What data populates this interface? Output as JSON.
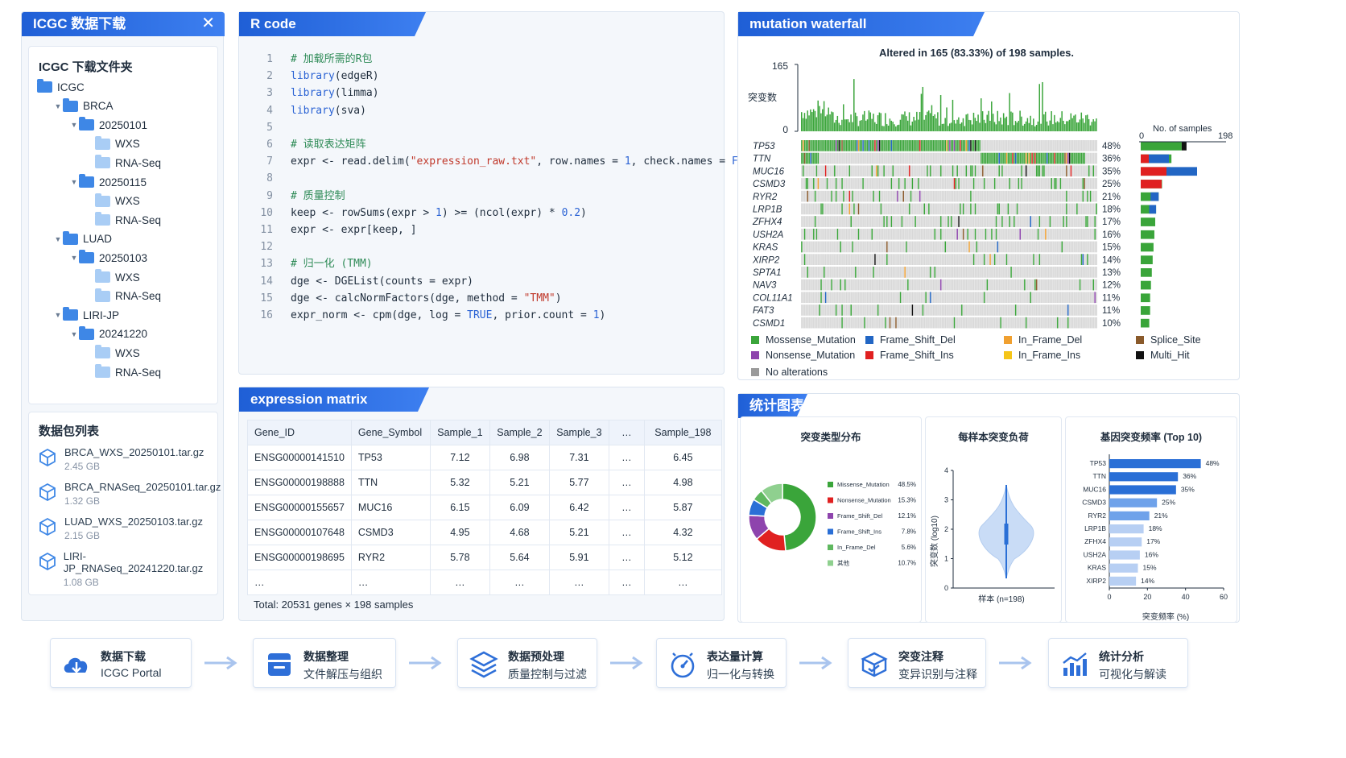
{
  "download": {
    "title": "ICGC 数据下载",
    "folder_title": "ICGC 下载文件夹",
    "tree": [
      {
        "label": "ICGC",
        "depth": 0,
        "toggle": "",
        "light": false
      },
      {
        "label": "BRCA",
        "depth": 1,
        "toggle": "▼",
        "light": false
      },
      {
        "label": "20250101",
        "depth": 2,
        "toggle": "▼",
        "light": false
      },
      {
        "label": "WXS",
        "depth": 3,
        "toggle": "",
        "light": true
      },
      {
        "label": "RNA-Seq",
        "depth": 3,
        "toggle": "",
        "light": true
      },
      {
        "label": "20250115",
        "depth": 2,
        "toggle": "▼",
        "light": false
      },
      {
        "label": "WXS",
        "depth": 3,
        "toggle": "",
        "light": true
      },
      {
        "label": "RNA-Seq",
        "depth": 3,
        "toggle": "",
        "light": true
      },
      {
        "label": "LUAD",
        "depth": 1,
        "toggle": "▼",
        "light": false
      },
      {
        "label": "20250103",
        "depth": 2,
        "toggle": "▼",
        "light": false
      },
      {
        "label": "WXS",
        "depth": 3,
        "toggle": "",
        "light": true
      },
      {
        "label": "RNA-Seq",
        "depth": 3,
        "toggle": "",
        "light": true
      },
      {
        "label": "LIRI-JP",
        "depth": 1,
        "toggle": "▼",
        "light": false
      },
      {
        "label": "20241220",
        "depth": 2,
        "toggle": "▼",
        "light": false
      },
      {
        "label": "WXS",
        "depth": 3,
        "toggle": "",
        "light": true
      },
      {
        "label": "RNA-Seq",
        "depth": 3,
        "toggle": "",
        "light": true
      }
    ],
    "packages_title": "数据包列表",
    "packages": [
      {
        "name": "BRCA_WXS_20250101.tar.gz",
        "size": "2.45 GB"
      },
      {
        "name": "BRCA_RNASeq_20250101.tar.gz",
        "size": "1.32 GB"
      },
      {
        "name": "LUAD_WXS_20250103.tar.gz",
        "size": "2.15 GB"
      },
      {
        "name": "LIRI-JP_RNASeq_20241220.tar.gz",
        "size": "1.08 GB"
      }
    ]
  },
  "rcode": {
    "title": "R code",
    "lines": [
      [
        [
          "cm",
          "# 加载所需的R包"
        ]
      ],
      [
        [
          "kw",
          "library"
        ],
        [
          "",
          "(edgeR)"
        ]
      ],
      [
        [
          "kw",
          "library"
        ],
        [
          "",
          "(limma)"
        ]
      ],
      [
        [
          "kw",
          "library"
        ],
        [
          "",
          "(sva)"
        ]
      ],
      [],
      [
        [
          "cm",
          "# 读取表达矩阵"
        ]
      ],
      [
        [
          "",
          "expr <- read.delim("
        ],
        [
          "st",
          "\"expression_raw.txt\""
        ],
        [
          "",
          ", row.names = "
        ],
        [
          "nu",
          "1"
        ],
        [
          "",
          ", check.names = "
        ],
        [
          "kw",
          "FALSE"
        ],
        [
          "",
          ")"
        ]
      ],
      [],
      [
        [
          "cm",
          "# 质量控制"
        ]
      ],
      [
        [
          "",
          "keep <- rowSums(expr > "
        ],
        [
          "nu",
          "1"
        ],
        [
          "",
          ") >= (ncol(expr) * "
        ],
        [
          "nu",
          "0.2"
        ],
        [
          "",
          ")"
        ]
      ],
      [
        [
          "",
          "expr <- expr[keep, ]"
        ]
      ],
      [],
      [
        [
          "cm",
          "# 归一化 (TMM)"
        ]
      ],
      [
        [
          "",
          "dge <- DGEList(counts = expr)"
        ]
      ],
      [
        [
          "",
          "dge <- calcNormFactors(dge, method = "
        ],
        [
          "st",
          "\"TMM\""
        ],
        [
          "",
          ")"
        ]
      ],
      [
        [
          "",
          "expr_norm <- cpm(dge, log = "
        ],
        [
          "kw",
          "TRUE"
        ],
        [
          "",
          ", prior.count = "
        ],
        [
          "nu",
          "1"
        ],
        [
          "",
          ")"
        ]
      ]
    ]
  },
  "matrix": {
    "title": "expression matrix",
    "headers": [
      "Gene_ID",
      "Gene_Symbol",
      "Sample_1",
      "Sample_2",
      "Sample_3",
      "…",
      "Sample_198"
    ],
    "rows": [
      [
        "ENSG00000141510",
        "TP53",
        "7.12",
        "6.98",
        "7.31",
        "…",
        "6.45"
      ],
      [
        "ENSG00000198888",
        "TTN",
        "5.32",
        "5.21",
        "5.77",
        "…",
        "4.98"
      ],
      [
        "ENSG00000155657",
        "MUC16",
        "6.15",
        "6.09",
        "6.42",
        "…",
        "5.87"
      ],
      [
        "ENSG00000107648",
        "CSMD3",
        "4.95",
        "4.68",
        "5.21",
        "…",
        "4.32"
      ],
      [
        "ENSG00000198695",
        "RYR2",
        "5.78",
        "5.64",
        "5.91",
        "…",
        "5.12"
      ],
      [
        "…",
        "…",
        "…",
        "…",
        "…",
        "…",
        "…"
      ]
    ],
    "total": "Total: 20531 genes × 198 samples"
  },
  "waterfall": {
    "title": "mutation waterfall",
    "summary": "Altered in 165 (83.33%) of 198 samples.",
    "ylabel": "突变数",
    "ymax": "165",
    "ymin": "0",
    "samples_label": "No. of samples",
    "sx0": "0",
    "sx1": "198",
    "genes": [
      "TP53",
      "TTN",
      "MUC16",
      "CSMD3",
      "RYR2",
      "LRP1B",
      "ZFHX4",
      "USH2A",
      "KRAS",
      "XIRP2",
      "SPTA1",
      "NAV3",
      "COL11A1",
      "FAT3",
      "CSMD1"
    ],
    "pct": [
      "48%",
      "36%",
      "35%",
      "25%",
      "21%",
      "18%",
      "17%",
      "16%",
      "15%",
      "14%",
      "13%",
      "12%",
      "11%",
      "11%",
      "10%"
    ],
    "legend": [
      {
        "label": "Mossense_Mutation",
        "color": "#3aa53a"
      },
      {
        "label": "Frame_Shift_Del",
        "color": "#2266c4"
      },
      {
        "label": "In_Frame_Del",
        "color": "#f0a030"
      },
      {
        "label": "Splice_Site",
        "color": "#8a5a2b"
      },
      {
        "label": "Nonsense_Mutation",
        "color": "#8e44ad"
      },
      {
        "label": "Frame_Shift_Ins",
        "color": "#e02020"
      },
      {
        "label": "In_Frame_Ins",
        "color": "#f5c518"
      },
      {
        "label": "Multi_Hit",
        "color": "#111111"
      },
      {
        "label": "No alterations",
        "color": "#9a9a9a"
      }
    ]
  },
  "stats": {
    "title": "统计图表",
    "pie": {
      "title": "突变类型分布",
      "items": [
        {
          "label": "Missense_Mutation",
          "pct": "48.5%",
          "value": 48.5,
          "color": "#3aa53a"
        },
        {
          "label": "Nonsense_Mutation",
          "pct": "15.3%",
          "value": 15.3,
          "color": "#e02020"
        },
        {
          "label": "Frame_Shift_Del",
          "pct": "12.1%",
          "value": 12.1,
          "color": "#8e44ad"
        },
        {
          "label": "Frame_Shift_Ins",
          "pct": "7.8%",
          "value": 7.8,
          "color": "#2a6fd6"
        },
        {
          "label": "In_Frame_Del",
          "pct": "5.6%",
          "value": 5.6,
          "color": "#5fb85f"
        },
        {
          "label": "其他",
          "pct": "10.7%",
          "value": 10.7,
          "color": "#8fd08f"
        }
      ]
    },
    "violin": {
      "title": "每样本突变负荷",
      "ylabel": "突变数 (log10)",
      "xlabel": "样本 (n=198)",
      "ticks": [
        "0",
        "1",
        "2",
        "3",
        "4"
      ]
    },
    "bars": {
      "title": "基因突变频率 (Top 10)",
      "xlabel": "突变频率 (%)",
      "ticks": [
        "0",
        "20",
        "40",
        "60"
      ],
      "genes": [
        "TP53",
        "TTN",
        "MUC16",
        "CSMD3",
        "RYR2",
        "LRP1B",
        "ZFHX4",
        "USH2A",
        "KRAS",
        "XIRP2"
      ],
      "values": [
        48,
        36,
        35,
        25,
        21,
        18,
        17,
        16,
        15,
        14
      ],
      "labels": [
        "48%",
        "36%",
        "35%",
        "25%",
        "21%",
        "18%",
        "17%",
        "16%",
        "15%",
        "14%"
      ]
    }
  },
  "flow": [
    {
      "title": "数据下载",
      "sub": "ICGC Portal",
      "icon": "cloud-download-icon"
    },
    {
      "title": "数据整理",
      "sub": "文件解压与组织",
      "icon": "archive-icon"
    },
    {
      "title": "数据预处理",
      "sub": "质量控制与过滤",
      "icon": "layers-icon"
    },
    {
      "title": "表达量计算",
      "sub": "归一化与转换",
      "icon": "gauge-icon"
    },
    {
      "title": "突变注释",
      "sub": "变异识别与注释",
      "icon": "box-annotate-icon"
    },
    {
      "title": "统计分析",
      "sub": "可视化与解读",
      "icon": "bar-chart-icon"
    }
  ]
}
